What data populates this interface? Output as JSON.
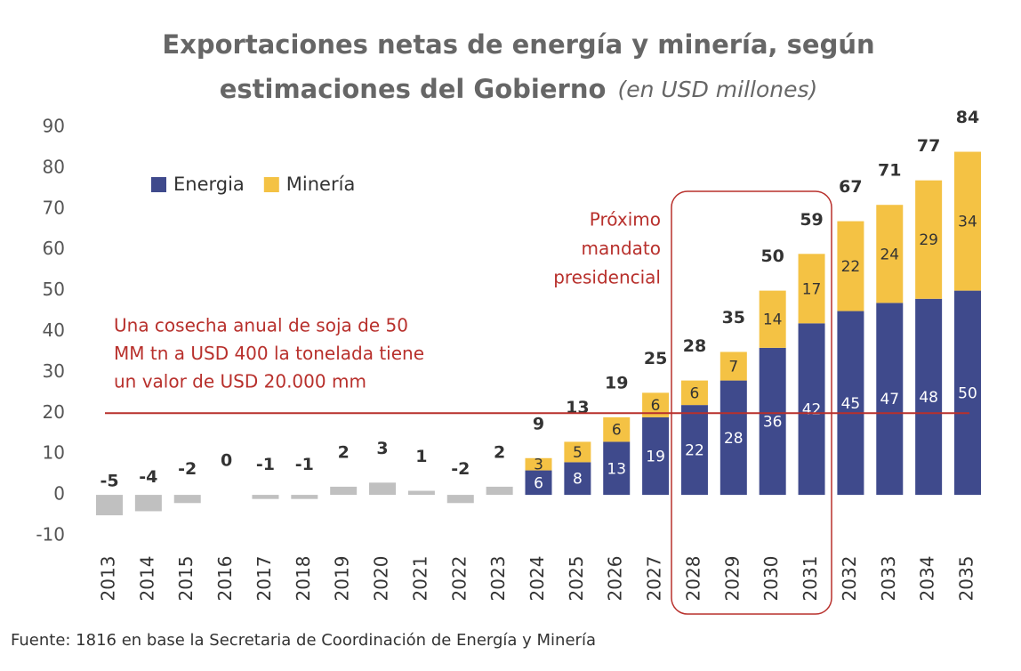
{
  "chart_data": {
    "type": "bar",
    "title": [
      "Exportaciones netas de energía y minería, según",
      "estimaciones del Gobierno"
    ],
    "subtitle": "(en USD millones)",
    "categories": [
      "2013",
      "2014",
      "2015",
      "2016",
      "2017",
      "2018",
      "2019",
      "2020",
      "2021",
      "2022",
      "2023",
      "2024",
      "2025",
      "2026",
      "2027",
      "2028",
      "2029",
      "2030",
      "2031",
      "2032",
      "2033",
      "2034",
      "2035"
    ],
    "series": [
      {
        "color": "#c0c0c0",
        "values": [
          -5,
          -4,
          -2,
          0,
          -1,
          -1,
          2,
          3,
          1,
          -2,
          2,
          null,
          null,
          null,
          null,
          null,
          null,
          null,
          null,
          null,
          null,
          null,
          null
        ]
      },
      {
        "name": "Energia",
        "color": "#3f4a8c",
        "values": [
          null,
          null,
          null,
          null,
          null,
          null,
          null,
          null,
          null,
          null,
          null,
          6,
          8,
          13,
          19,
          22,
          28,
          36,
          42,
          45,
          47,
          48,
          50
        ]
      },
      {
        "name": "Minería",
        "color": "#f4c244",
        "values": [
          null,
          null,
          null,
          null,
          null,
          null,
          null,
          null,
          null,
          null,
          null,
          3,
          5,
          6,
          6,
          6,
          7,
          14,
          17,
          22,
          24,
          29,
          34
        ]
      }
    ],
    "totals": [
      -5,
      -4,
      -2,
      0,
      -1,
      -1,
      2,
      3,
      1,
      -2,
      2,
      9,
      13,
      19,
      25,
      28,
      35,
      50,
      59,
      67,
      71,
      77,
      84
    ],
    "ylim": [
      -10,
      90
    ],
    "yticks": [
      -10,
      0,
      10,
      20,
      30,
      40,
      50,
      60,
      70,
      80,
      90
    ],
    "reference_line": {
      "value": 20,
      "color": "#b8302c"
    },
    "annotations": {
      "soja": [
        "Una cosecha anual de soja de 50",
        "MM tn a USD 400 la tonelada tiene",
        "un valor de USD 20.000 mm"
      ],
      "mandato": [
        "Próximo",
        "mandato",
        "presidencial"
      ]
    },
    "source": "Fuente: 1816 en base la Secretaria de Coordinación de Energía y Minería"
  }
}
